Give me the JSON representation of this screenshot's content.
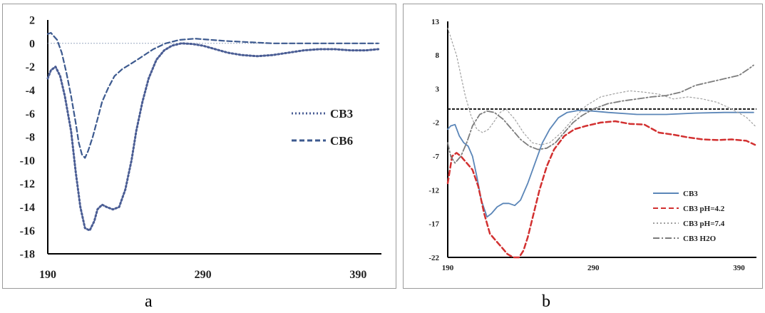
{
  "chart_data": [
    {
      "type": "line",
      "panel_label": "a",
      "xlim": [
        190,
        405
      ],
      "ylim": [
        -18,
        2
      ],
      "x_ticks": [
        "190",
        "290",
        "390"
      ],
      "y_ticks": [
        "2",
        "0",
        "-2",
        "-4",
        "-6",
        "-8",
        "-10",
        "-12",
        "-14",
        "-16",
        "-18"
      ],
      "x_tick_values": [
        190,
        290,
        390
      ],
      "y_tick_values": [
        2,
        0,
        -2,
        -4,
        -6,
        -8,
        -10,
        -12,
        -14,
        -16,
        -18
      ],
      "reference_line_y": 0,
      "grid": false,
      "legend_position": "right-middle",
      "series": [
        {
          "name": "CB3",
          "color": "#4a5d94",
          "style": "dotted",
          "x": [
            190,
            192,
            195,
            198,
            201,
            205,
            208,
            211,
            214,
            217,
            220,
            222,
            225,
            228,
            232,
            236,
            240,
            244,
            247,
            251,
            255,
            260,
            265,
            270,
            276,
            283,
            290,
            298,
            306,
            315,
            325,
            335,
            345,
            355,
            365,
            375,
            385,
            395,
            403
          ],
          "y": [
            -3,
            -2.3,
            -2,
            -2.8,
            -4.5,
            -7.5,
            -11,
            -14,
            -15.8,
            -16,
            -15.2,
            -14.2,
            -13.8,
            -14,
            -14.2,
            -14,
            -12.5,
            -10,
            -7.5,
            -5,
            -3,
            -1.4,
            -0.6,
            -0.2,
            0,
            -0.05,
            -0.2,
            -0.5,
            -0.8,
            -1,
            -1.1,
            -1,
            -0.8,
            -0.6,
            -0.5,
            -0.5,
            -0.6,
            -0.6,
            -0.5
          ]
        },
        {
          "name": "CB6",
          "color": "#3d5a8f",
          "style": "dashed",
          "x": [
            190,
            192,
            194,
            196,
            199,
            202,
            205,
            208,
            210,
            212,
            214,
            216,
            219,
            222,
            225,
            229,
            233,
            238,
            243,
            250,
            258,
            266,
            275,
            285,
            295,
            305,
            320,
            335,
            350,
            365,
            380,
            395,
            403
          ],
          "y": [
            0.8,
            0.9,
            0.6,
            0.3,
            -0.8,
            -2.5,
            -4.5,
            -6.8,
            -8.5,
            -9.5,
            -9.8,
            -9.2,
            -8,
            -6.5,
            -5,
            -3.8,
            -2.8,
            -2.2,
            -1.8,
            -1.2,
            -0.5,
            0,
            0.3,
            0.4,
            0.3,
            0.2,
            0.1,
            0,
            0,
            0,
            0,
            0,
            0
          ]
        }
      ]
    },
    {
      "type": "line",
      "panel_label": "b",
      "xlim": [
        190,
        402
      ],
      "ylim": [
        -22,
        13
      ],
      "x_ticks": [
        "190",
        "290",
        "390"
      ],
      "y_ticks": [
        "13",
        "8",
        "3",
        "-2",
        "-7",
        "-12",
        "-17",
        "-22"
      ],
      "x_tick_values": [
        190,
        290,
        390
      ],
      "y_tick_values": [
        13,
        8,
        3,
        -2,
        -7,
        -12,
        -17,
        -22
      ],
      "reference_line_y": 0,
      "grid": false,
      "legend_position": "bottom-right",
      "series": [
        {
          "name": "CB3",
          "color": "#5b86b8",
          "style": "solid",
          "x": [
            190,
            192,
            195,
            198,
            201,
            204,
            207,
            210,
            213,
            217,
            220,
            224,
            228,
            232,
            236,
            240,
            245,
            250,
            255,
            260,
            266,
            272,
            280,
            290,
            300,
            320,
            340,
            360,
            380,
            400
          ],
          "y": [
            -3,
            -2.5,
            -2.3,
            -4,
            -5,
            -5.5,
            -7,
            -10,
            -13.5,
            -16,
            -15.5,
            -14.5,
            -14,
            -14,
            -14.3,
            -13.5,
            -11,
            -8,
            -5,
            -3,
            -1.3,
            -0.5,
            -0.2,
            -0.3,
            -0.5,
            -0.8,
            -0.8,
            -0.6,
            -0.5,
            -0.5
          ]
        },
        {
          "name": "CB3 pH=4.2",
          "color": "#d23030",
          "style": "dashed",
          "x": [
            190,
            193,
            196,
            199,
            203,
            207,
            211,
            215,
            219,
            223,
            227,
            231,
            235,
            239,
            242,
            245,
            249,
            253,
            258,
            263,
            270,
            277,
            285,
            295,
            305,
            315,
            325,
            335,
            345,
            355,
            365,
            375,
            385,
            395,
            401
          ],
          "y": [
            -11,
            -7,
            -6.5,
            -7,
            -8,
            -9,
            -11.5,
            -15.5,
            -18.5,
            -19.5,
            -20.5,
            -21.5,
            -22,
            -22,
            -21,
            -19,
            -15.5,
            -12,
            -8.5,
            -6,
            -4,
            -3,
            -2.5,
            -2,
            -1.8,
            -2.2,
            -2.3,
            -3.5,
            -3.8,
            -4.2,
            -4.5,
            -4.6,
            -4.5,
            -4.7,
            -5.3
          ]
        },
        {
          "name": "CB3 pH=7.4",
          "color": "#a0a0a0",
          "style": "dotted",
          "x": [
            190,
            193,
            196,
            199,
            202,
            206,
            210,
            214,
            218,
            222,
            226,
            230,
            236,
            242,
            248,
            254,
            260,
            268,
            276,
            285,
            295,
            305,
            315,
            325,
            335,
            345,
            355,
            365,
            375,
            385,
            395,
            401
          ],
          "y": [
            12,
            10,
            8,
            5,
            2,
            -1,
            -3,
            -3.5,
            -3,
            -1.8,
            -0.5,
            0,
            -1.5,
            -3.5,
            -5,
            -5.3,
            -5,
            -3.5,
            -1.5,
            0.5,
            1.8,
            2.3,
            2.7,
            2.5,
            2.2,
            1.5,
            1.8,
            1.5,
            1,
            0,
            -1.2,
            -2.5
          ]
        },
        {
          "name": "CB3 H2O",
          "color": "#7c7c7c",
          "style": "dashdot",
          "x": [
            190,
            192,
            195,
            199,
            203,
            207,
            212,
            217,
            222,
            228,
            234,
            240,
            246,
            252,
            258,
            264,
            270,
            276,
            282,
            290,
            300,
            310,
            320,
            330,
            340,
            350,
            360,
            370,
            380,
            390,
            397,
            400
          ],
          "y": [
            -5,
            -7,
            -8,
            -7,
            -5,
            -2.5,
            -0.8,
            -0.3,
            -0.5,
            -1.5,
            -3,
            -4.5,
            -5.5,
            -6,
            -5.8,
            -5,
            -3.5,
            -2,
            -1,
            0,
            0.8,
            1.2,
            1.5,
            1.8,
            2,
            2.5,
            3.5,
            4,
            4.5,
            5,
            6,
            6.5
          ]
        }
      ]
    }
  ],
  "panel_labels": {
    "a": "a",
    "b": "b"
  }
}
